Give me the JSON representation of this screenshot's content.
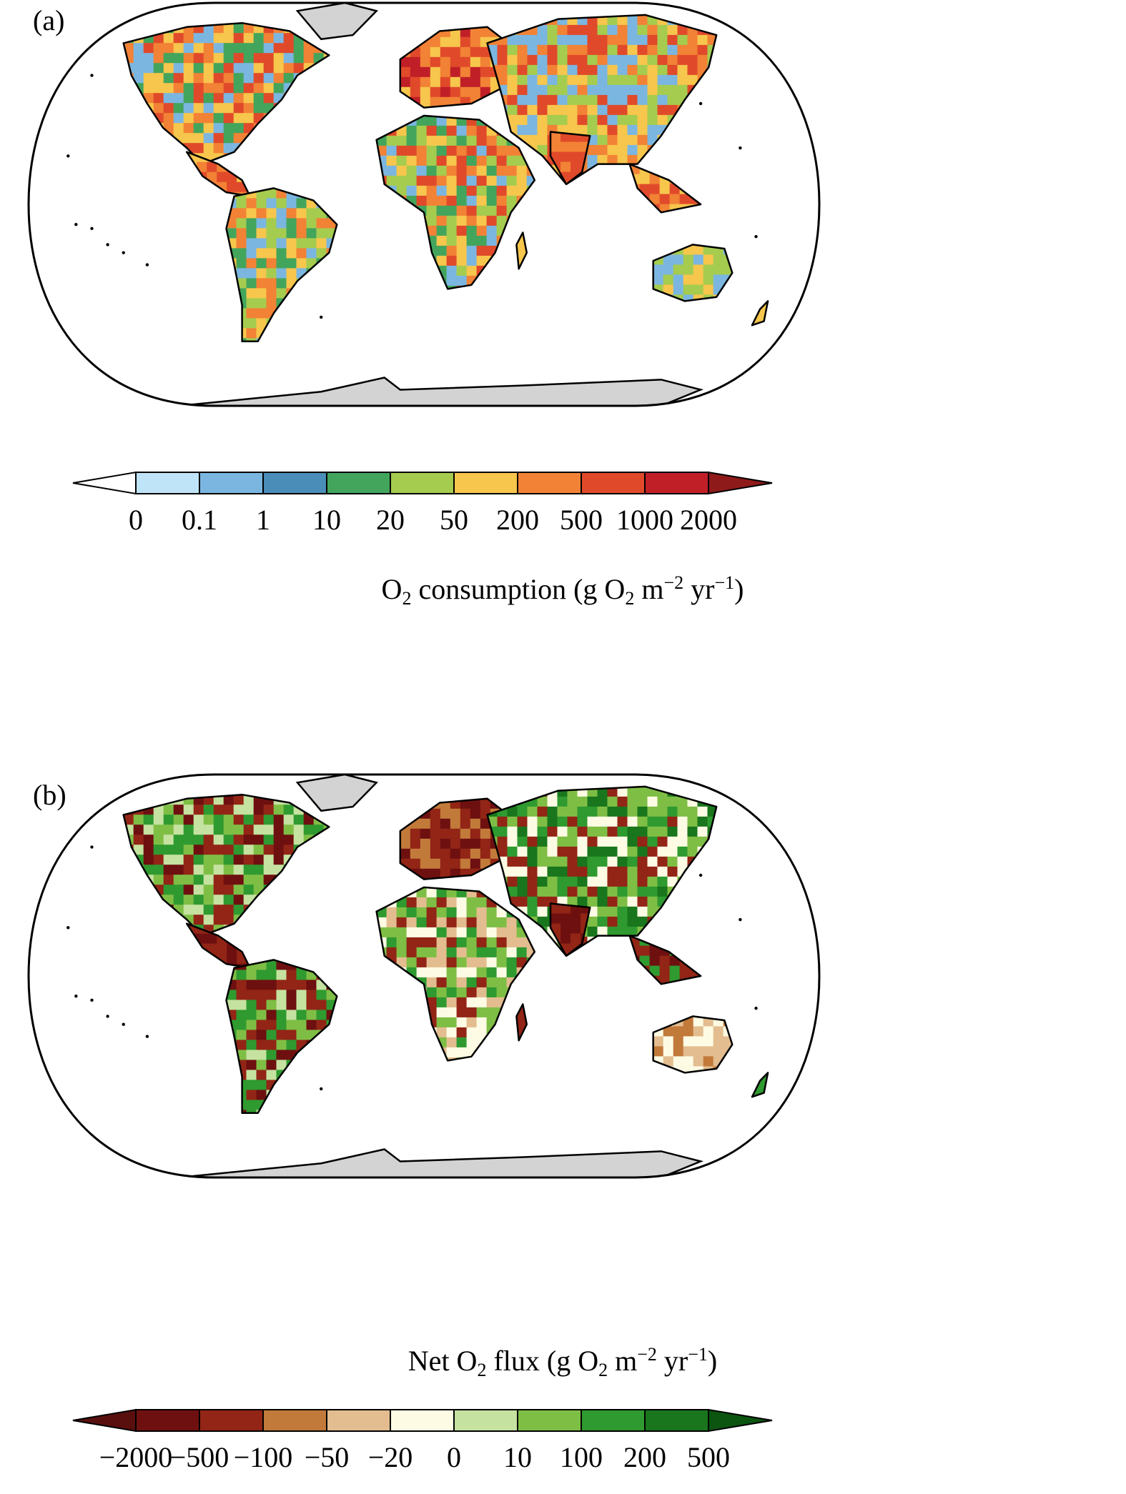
{
  "panels": [
    {
      "label": "(a)",
      "colorbar": {
        "title_main": "O",
        "title_sub": "2",
        "title_rest": " consumption (g O",
        "title_sub2": "2",
        "title_rest2": " m",
        "title_sup1": "−2",
        "title_rest3": " yr",
        "title_sup2": "−1",
        "title_end": ")",
        "ticks": [
          "0",
          "0.1",
          "1",
          "10",
          "20",
          "50",
          "200",
          "500",
          "1000",
          "2000"
        ],
        "colors": [
          "#ffffff",
          "#bfe3f7",
          "#7bb6e0",
          "#4a8db8",
          "#43a55c",
          "#a5cc4f",
          "#f7c64c",
          "#f28235",
          "#e04a2a",
          "#c11f27",
          "#8f1a1a"
        ]
      }
    },
    {
      "label": "(b)",
      "colorbar": {
        "title_main": "Net O",
        "title_sub": "2",
        "title_rest": " flux (g O",
        "title_sub2": "2",
        "title_rest2": " m",
        "title_sup1": "−2",
        "title_rest3": " yr",
        "title_sup2": "−1",
        "title_end": ")",
        "ticks": [
          "−2000",
          "−500",
          "−100",
          "−50",
          "−20",
          "0",
          "10",
          "100",
          "200",
          "500"
        ],
        "colors": [
          "#5a0f0f",
          "#6e1010",
          "#922516",
          "#c27a3a",
          "#e3bd8f",
          "#fdfbe3",
          "#c5e2a0",
          "#7fbe45",
          "#2f9a2f",
          "#19761c",
          "#0b5510"
        ]
      }
    }
  ]
}
